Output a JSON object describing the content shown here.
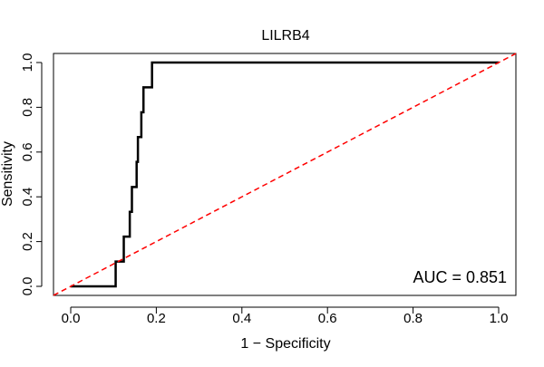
{
  "chart_data": {
    "type": "line",
    "title": "LILRB4",
    "xlabel": "1 − Specificity",
    "ylabel": "Sensitivity",
    "xlim": [
      0,
      1
    ],
    "ylim": [
      0,
      1
    ],
    "x_ticks": [
      0.0,
      0.2,
      0.4,
      0.6,
      0.8,
      1.0
    ],
    "x_tick_labels": [
      "0.0",
      "0.2",
      "0.4",
      "0.6",
      "0.8",
      "1.0"
    ],
    "y_ticks": [
      0.0,
      0.2,
      0.4,
      0.6,
      0.8,
      1.0
    ],
    "y_tick_labels": [
      "0.0",
      "0.2",
      "0.4",
      "0.6",
      "0.8",
      "1.0"
    ],
    "grid": false,
    "series": [
      {
        "style": "step",
        "color": "#000000",
        "points": [
          [
            0.0,
            0.0
          ],
          [
            0.105,
            0.0
          ],
          [
            0.105,
            0.111
          ],
          [
            0.124,
            0.111
          ],
          [
            0.124,
            0.222
          ],
          [
            0.138,
            0.222
          ],
          [
            0.138,
            0.333
          ],
          [
            0.143,
            0.333
          ],
          [
            0.143,
            0.444
          ],
          [
            0.154,
            0.444
          ],
          [
            0.154,
            0.556
          ],
          [
            0.157,
            0.556
          ],
          [
            0.157,
            0.667
          ],
          [
            0.165,
            0.667
          ],
          [
            0.165,
            0.778
          ],
          [
            0.17,
            0.778
          ],
          [
            0.17,
            0.889
          ],
          [
            0.19,
            0.889
          ],
          [
            0.19,
            1.0
          ],
          [
            1.0,
            1.0
          ]
        ]
      },
      {
        "style": "dashed",
        "color": "#ff0000",
        "points": [
          [
            0,
            0
          ],
          [
            1,
            1
          ]
        ]
      }
    ],
    "annotation": "AUC = 0.851"
  }
}
